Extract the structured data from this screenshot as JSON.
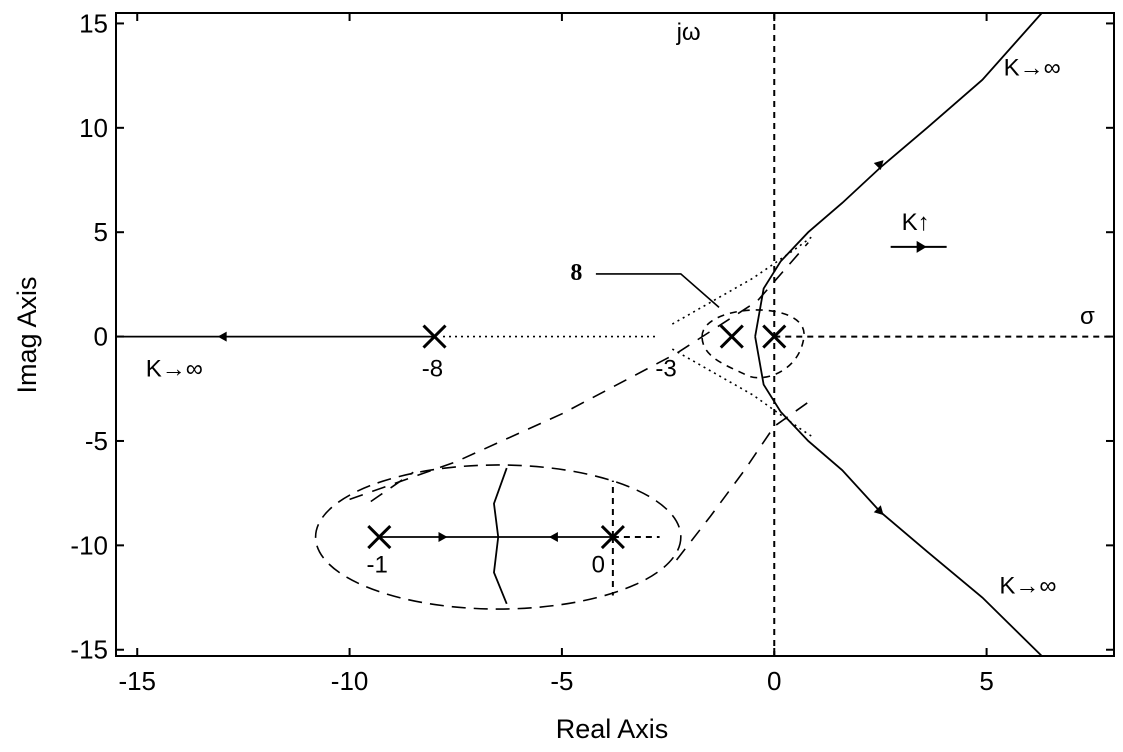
{
  "chart_data": {
    "type": "line",
    "title": "",
    "xlabel": "Real Axis",
    "ylabel": "Imag Axis",
    "xlim": [
      -15.5,
      8
    ],
    "ylim": [
      -15.3,
      15.5
    ],
    "x_ticks": [
      -15,
      -10,
      -5,
      0,
      5
    ],
    "y_ticks": [
      15,
      10,
      5,
      0,
      -5,
      -10,
      -15
    ],
    "x_tick_labels": [
      "-15",
      "-10",
      "-5",
      "0",
      "5"
    ],
    "y_tick_labels": [
      "15",
      "10",
      "5",
      "0",
      "-5",
      "-10",
      "-15"
    ],
    "grid": false,
    "poles": [
      {
        "x": -8,
        "y": 0
      },
      {
        "x": -1,
        "y": 0
      },
      {
        "x": 0,
        "y": 0
      },
      {
        "x": -9.3,
        "y": -9.6
      },
      {
        "x": -3.8,
        "y": -9.6
      }
    ],
    "series": [
      {
        "style": "solid",
        "points": [
          [
            -8,
            0
          ],
          [
            -15.5,
            0
          ]
        ]
      },
      {
        "style": "solid",
        "points": [
          [
            -0.45,
            0
          ],
          [
            -0.25,
            2.3
          ],
          [
            0.15,
            3.6
          ],
          [
            0.8,
            5
          ],
          [
            1.6,
            6.4
          ],
          [
            2.5,
            8.1
          ],
          [
            3.6,
            10
          ],
          [
            4.9,
            12.3
          ],
          [
            6.3,
            15.5
          ]
        ]
      },
      {
        "style": "solid",
        "points": [
          [
            -0.45,
            0
          ],
          [
            -0.25,
            -2.3
          ],
          [
            0.15,
            -3.6
          ],
          [
            0.8,
            -5
          ],
          [
            1.6,
            -6.4
          ],
          [
            2.5,
            -8.4
          ],
          [
            3.6,
            -10.3
          ],
          [
            4.9,
            -12.5
          ],
          [
            6.3,
            -15.3
          ]
        ]
      },
      {
        "style": "solid",
        "points": [
          [
            -9.3,
            -9.6
          ],
          [
            -3.8,
            -9.6
          ]
        ]
      },
      {
        "style": "solid",
        "points": [
          [
            -6.3,
            -6.3
          ],
          [
            -6.6,
            -8
          ],
          [
            -6.5,
            -9.6
          ],
          [
            -6.6,
            -11.3
          ],
          [
            -6.3,
            -12.8
          ]
        ]
      }
    ],
    "direction_arrows": [
      {
        "x": -13,
        "y": 0,
        "dir": "left"
      },
      {
        "x": 2.5,
        "y": 8.3,
        "dir": "up-right"
      },
      {
        "x": 2.5,
        "y": -8.4,
        "dir": "down-right"
      },
      {
        "x": -7.8,
        "y": -9.6,
        "dir": "right"
      },
      {
        "x": -5.2,
        "y": -9.6,
        "dir": "left"
      }
    ],
    "annotations": [
      {
        "text": "jω",
        "x": -2.3,
        "y": 14.2
      },
      {
        "text": "σ",
        "x": 7.2,
        "y": 0.6
      },
      {
        "text": "K→∞",
        "x": 5.4,
        "y": 12.5
      },
      {
        "text": "K→∞",
        "x": -14.8,
        "y": -1.9
      },
      {
        "text": "K→∞",
        "x": 5.3,
        "y": -12.3
      },
      {
        "text": "K↑",
        "x": 3.0,
        "y": 5.1
      },
      {
        "text": "8",
        "x": -4.8,
        "y": 2.7,
        "bold": true
      },
      {
        "text": "-8",
        "x": -8.3,
        "y": -1.9
      },
      {
        "text": "-3",
        "x": -2.8,
        "y": -1.9
      },
      {
        "text": "-1",
        "x": -9.6,
        "y": -11.3
      },
      {
        "text": "0",
        "x": -4.3,
        "y": -11.3
      }
    ]
  }
}
